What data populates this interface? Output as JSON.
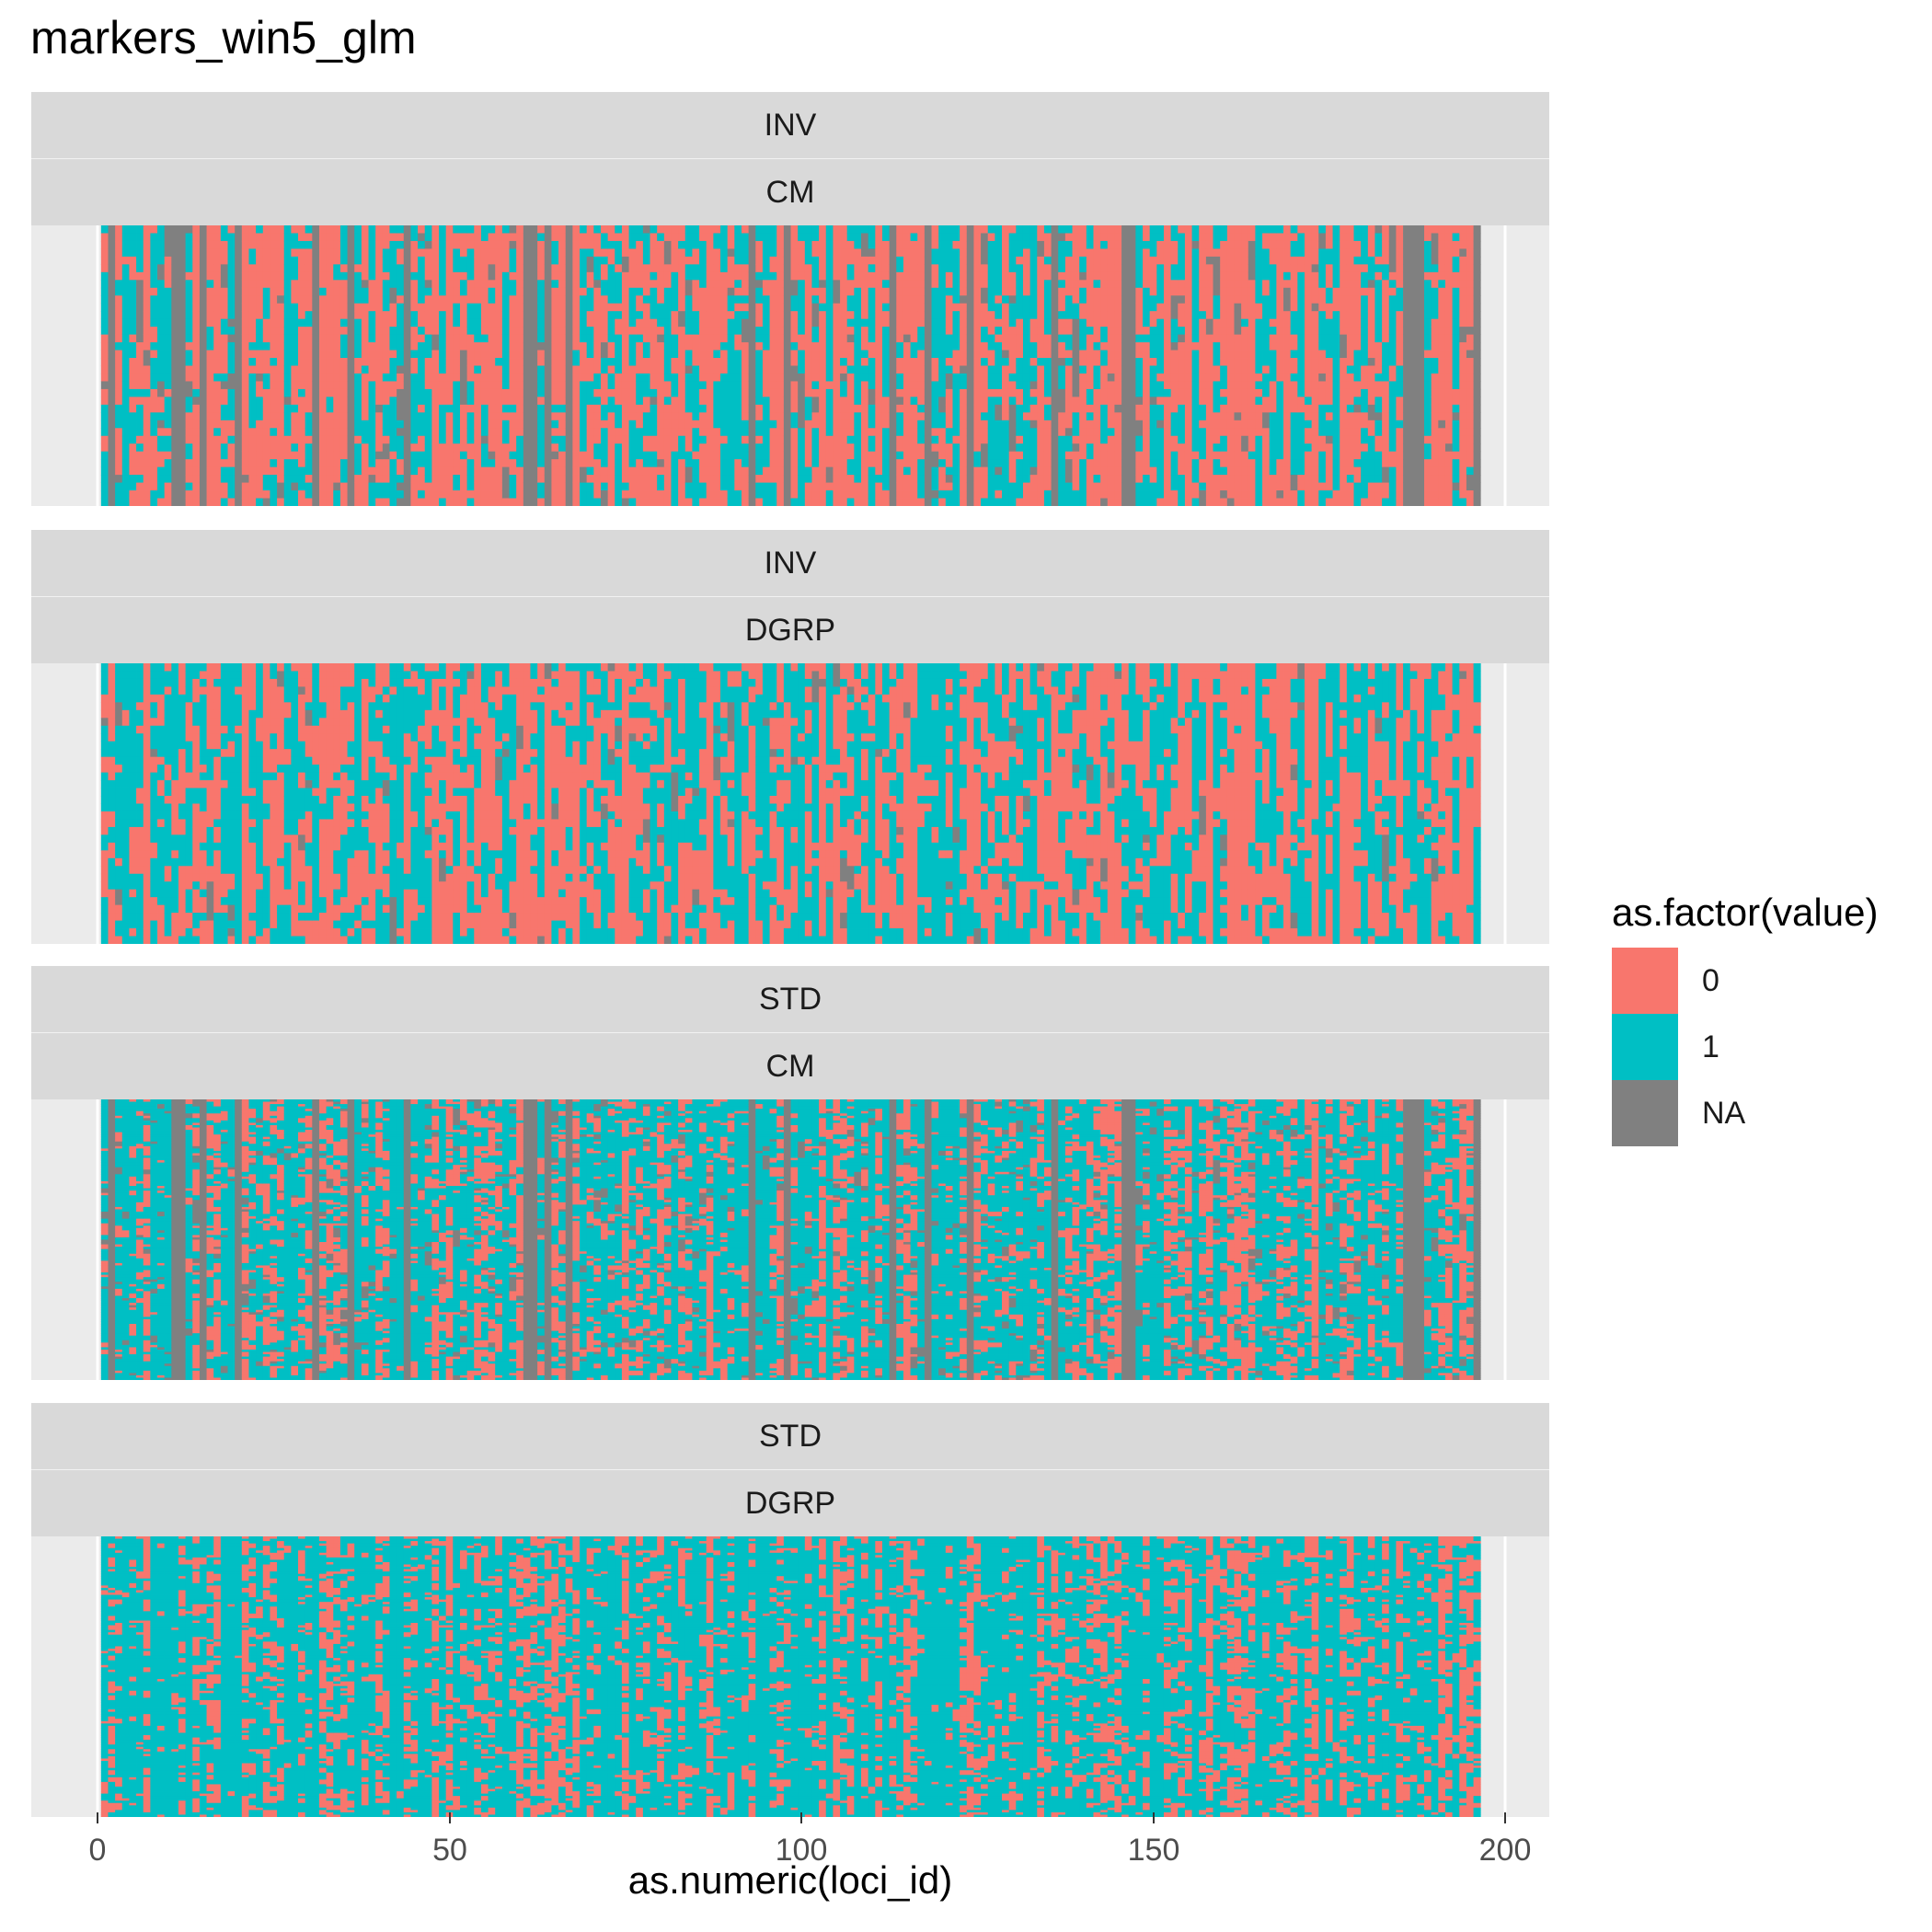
{
  "chart_data": {
    "type": "heatmap",
    "title": "markers_win5_glm",
    "xlabel": "as.numeric(loci_id)",
    "ylabel": "",
    "xlim": [
      0,
      200
    ],
    "x_ticks": [
      "0",
      "50",
      "100",
      "150",
      "200"
    ],
    "loci_range": [
      1,
      196
    ],
    "legend": {
      "title": "as.factor(value)",
      "position": "right",
      "entries": [
        {
          "label": "0",
          "color": "#F8766D"
        },
        {
          "label": "1",
          "color": "#00BFC4"
        },
        {
          "label": "NA",
          "color": "#808080"
        }
      ]
    },
    "panels": [
      {
        "strip_top": "INV",
        "strip_bottom": "CM",
        "rows": 36,
        "dominant_value": "0",
        "frac_1": 0.35,
        "frac_na": 0.12
      },
      {
        "strip_top": "INV",
        "strip_bottom": "DGRP",
        "rows": 36,
        "dominant_value": "0",
        "frac_1": 0.45,
        "frac_na": 0.05
      },
      {
        "strip_top": "STD",
        "strip_bottom": "CM",
        "rows": 120,
        "dominant_value": "1",
        "frac_1": 0.65,
        "frac_na": 0.12
      },
      {
        "strip_top": "STD",
        "strip_bottom": "DGRP",
        "rows": 120,
        "dominant_value": "1",
        "frac_1": 0.7,
        "frac_na": 0.0
      }
    ],
    "na_columns_cm": [
      2,
      11,
      12,
      15,
      20,
      31,
      36,
      44,
      61,
      62,
      64,
      67,
      93,
      98,
      113,
      118,
      124,
      136,
      146,
      147,
      186,
      187,
      188,
      196
    ]
  }
}
